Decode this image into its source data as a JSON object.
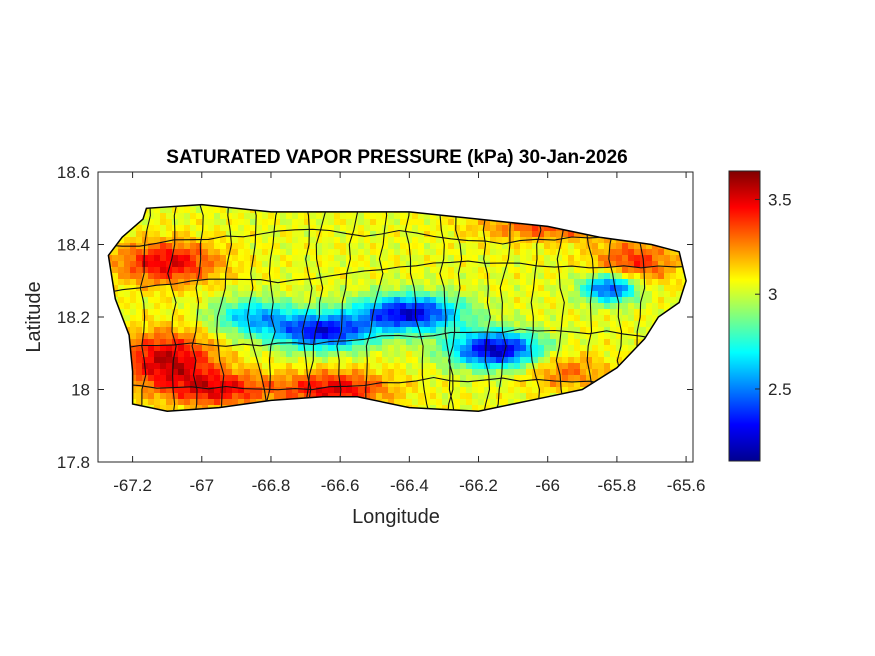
{
  "chart_data": {
    "type": "heatmap",
    "title": "SATURATED VAPOR PRESSURE (kPa) 30-Jan-2026",
    "xlabel": "Longitude",
    "ylabel": "Latitude",
    "xlim": [
      -67.3,
      -65.58
    ],
    "ylim": [
      17.8,
      18.6
    ],
    "xticks": [
      -67.2,
      -67,
      -66.8,
      -66.6,
      -66.4,
      -66.2,
      -66,
      -65.8,
      -65.6
    ],
    "yticks": [
      17.8,
      18,
      18.2,
      18.4,
      18.6
    ],
    "colorbar": {
      "range": [
        2.12,
        3.65
      ],
      "ticks": [
        2.5,
        3,
        3.5
      ],
      "colormap": "jet"
    },
    "grid": false,
    "region_outline": [
      [
        -67.27,
        18.37
      ],
      [
        -67.23,
        18.42
      ],
      [
        -67.17,
        18.47
      ],
      [
        -67.16,
        18.5
      ],
      [
        -67.0,
        18.51
      ],
      [
        -66.8,
        18.49
      ],
      [
        -66.6,
        18.49
      ],
      [
        -66.4,
        18.49
      ],
      [
        -66.2,
        18.47
      ],
      [
        -66.0,
        18.45
      ],
      [
        -65.85,
        18.42
      ],
      [
        -65.7,
        18.4
      ],
      [
        -65.62,
        18.38
      ],
      [
        -65.6,
        18.3
      ],
      [
        -65.62,
        18.24
      ],
      [
        -65.68,
        18.2
      ],
      [
        -65.72,
        18.14
      ],
      [
        -65.8,
        18.06
      ],
      [
        -65.9,
        18.0
      ],
      [
        -66.0,
        17.98
      ],
      [
        -66.1,
        17.96
      ],
      [
        -66.2,
        17.94
      ],
      [
        -66.4,
        17.95
      ],
      [
        -66.55,
        17.98
      ],
      [
        -66.65,
        17.98
      ],
      [
        -66.8,
        17.97
      ],
      [
        -66.95,
        17.95
      ],
      [
        -67.1,
        17.94
      ],
      [
        -67.2,
        17.96
      ],
      [
        -67.2,
        18.05
      ],
      [
        -67.21,
        18.15
      ],
      [
        -67.25,
        18.25
      ],
      [
        -67.27,
        18.37
      ]
    ],
    "field": [
      {
        "lon": -67.1,
        "lat": 18.08,
        "value": 3.55,
        "spread_lon": 0.14,
        "spread_lat": 0.08
      },
      {
        "lon": -66.62,
        "lat": 18.0,
        "value": 3.5,
        "spread_lon": 0.16,
        "spread_lat": 0.05
      },
      {
        "lon": -66.95,
        "lat": 18.0,
        "value": 3.45,
        "spread_lon": 0.14,
        "spread_lat": 0.05
      },
      {
        "lon": -67.1,
        "lat": 18.35,
        "value": 3.5,
        "spread_lon": 0.15,
        "spread_lat": 0.06
      },
      {
        "lon": -65.75,
        "lat": 18.35,
        "value": 3.4,
        "spread_lon": 0.12,
        "spread_lat": 0.06
      },
      {
        "lon": -65.95,
        "lat": 18.05,
        "value": 3.3,
        "spread_lon": 0.12,
        "spread_lat": 0.05
      },
      {
        "lon": -66.65,
        "lat": 18.16,
        "value": 2.3,
        "spread_lon": 0.14,
        "spread_lat": 0.05
      },
      {
        "lon": -66.4,
        "lat": 18.21,
        "value": 2.25,
        "spread_lon": 0.15,
        "spread_lat": 0.05
      },
      {
        "lon": -66.15,
        "lat": 18.11,
        "value": 2.2,
        "spread_lon": 0.13,
        "spread_lat": 0.05
      },
      {
        "lon": -65.82,
        "lat": 18.28,
        "value": 2.35,
        "spread_lon": 0.08,
        "spread_lat": 0.04
      },
      {
        "lon": -66.85,
        "lat": 18.2,
        "value": 2.6,
        "spread_lon": 0.12,
        "spread_lat": 0.05
      },
      {
        "lon": -66.0,
        "lat": 18.45,
        "value": 3.35,
        "spread_lon": 0.2,
        "spread_lat": 0.04
      },
      {
        "lon": -66.8,
        "lat": 18.45,
        "value": 3.05,
        "spread_lon": 0.2,
        "spread_lat": 0.05
      }
    ],
    "background_value": 3.05
  }
}
